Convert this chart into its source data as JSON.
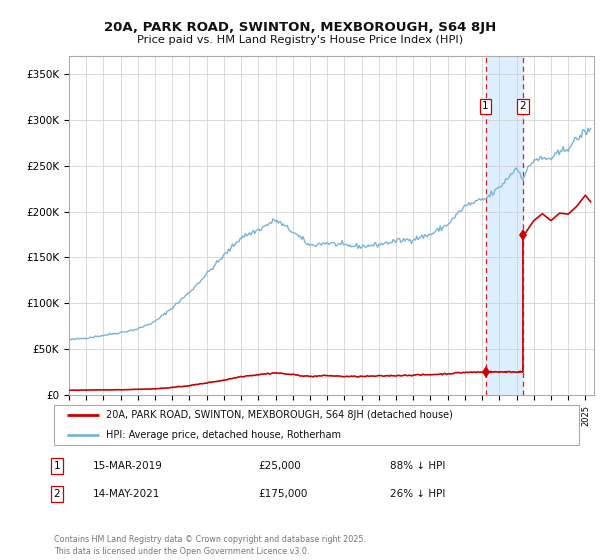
{
  "title1": "20A, PARK ROAD, SWINTON, MEXBOROUGH, S64 8JH",
  "title2": "Price paid vs. HM Land Registry's House Price Index (HPI)",
  "ylabel_ticks": [
    "£0",
    "£50K",
    "£100K",
    "£150K",
    "£200K",
    "£250K",
    "£300K",
    "£350K"
  ],
  "ytick_values": [
    0,
    50000,
    100000,
    150000,
    200000,
    250000,
    300000,
    350000
  ],
  "ylim": [
    0,
    370000
  ],
  "xlim_start": 1995.0,
  "xlim_end": 2025.5,
  "hpi_color": "#7ab3d9",
  "price_color": "#cc0000",
  "sale1_date": 2019.2,
  "sale1_price": 25000,
  "sale2_date": 2021.37,
  "sale2_price": 175000,
  "legend_entry1": "20A, PARK ROAD, SWINTON, MEXBOROUGH, S64 8JH (detached house)",
  "legend_entry2": "HPI: Average price, detached house, Rotherham",
  "annotation1_date": "15-MAR-2019",
  "annotation1_price": "£25,000",
  "annotation1_hpi": "88% ↓ HPI",
  "annotation2_date": "14-MAY-2021",
  "annotation2_price": "£175,000",
  "annotation2_hpi": "26% ↓ HPI",
  "footer": "Contains HM Land Registry data © Crown copyright and database right 2025.\nThis data is licensed under the Open Government Licence v3.0.",
  "background_color": "#ffffff",
  "shaded_region_color": "#ddeeff",
  "grid_color": "#cccccc",
  "annotation_box_color": "#cc0000"
}
